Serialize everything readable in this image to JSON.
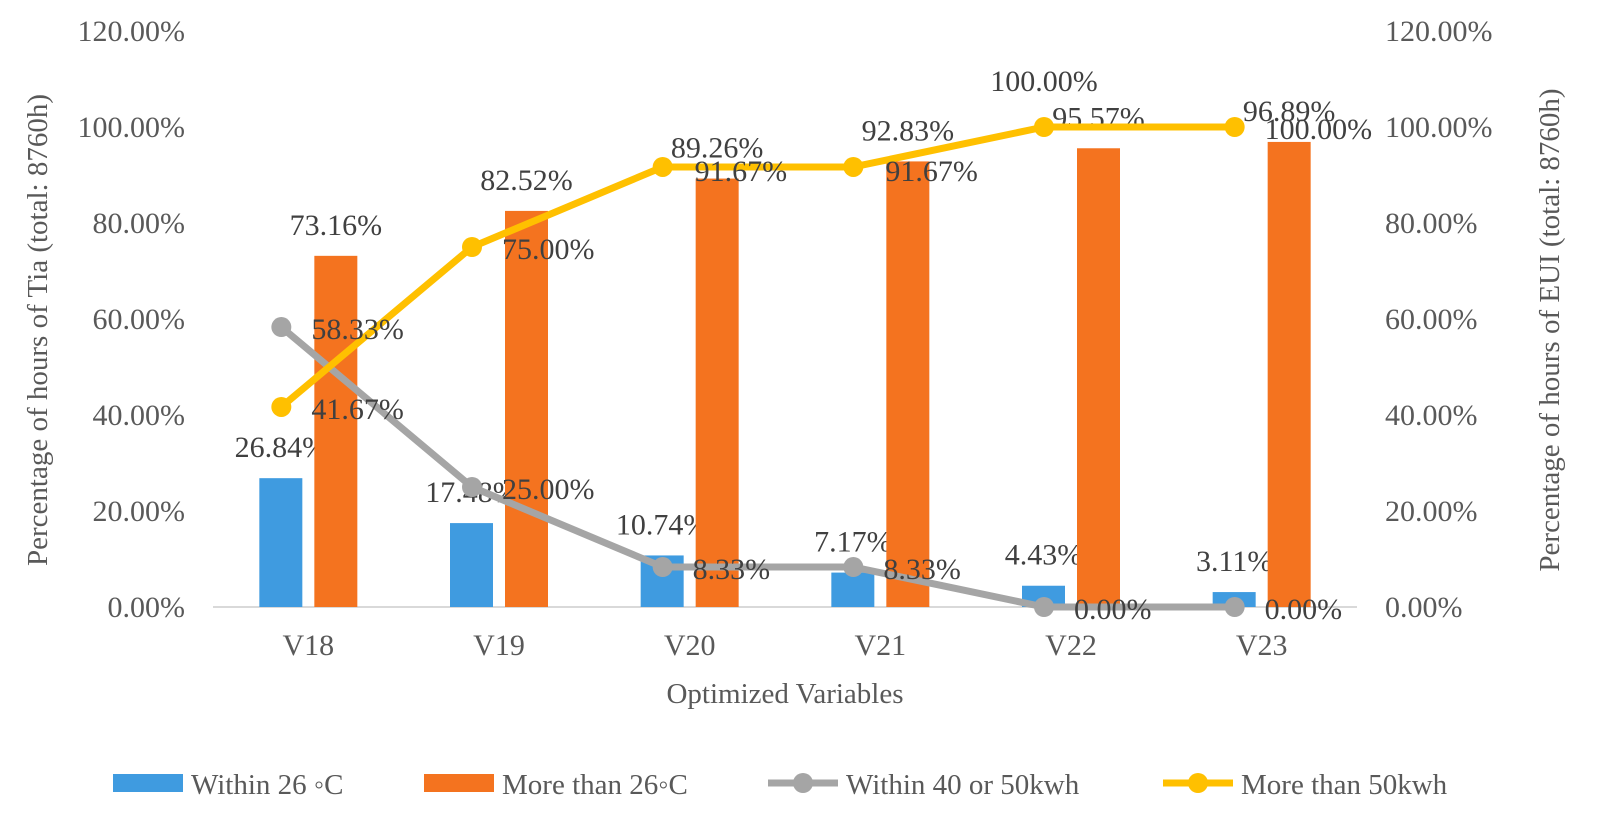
{
  "chart_data": {
    "type": "bar",
    "categories": [
      "V18",
      "V19",
      "V20",
      "V21",
      "V22",
      "V23"
    ],
    "xlabel": "Optimized Variables",
    "ylabel": "Percentage of hours of Tia (total: 8760h)",
    "y2label": "Percentage of hours of EUI (total: 8760h)",
    "ylim": [
      0,
      120
    ],
    "y2lim": [
      0,
      120
    ],
    "yticks": [
      "0.00%",
      "20.00%",
      "40.00%",
      "60.00%",
      "80.00%",
      "100.00%",
      "120.00%"
    ],
    "y2ticks": [
      "0.00%",
      "20.00%",
      "40.00%",
      "60.00%",
      "80.00%",
      "100.00%",
      "120.00%"
    ],
    "grid": "baseline only",
    "legend_position": "bottom",
    "series": [
      {
        "name": "Within 26 ◦C",
        "kind": "bar",
        "axis": "left",
        "color": "#3F9BE0",
        "values": [
          26.84,
          17.48,
          10.74,
          7.17,
          4.43,
          3.11
        ],
        "labels": [
          "26.84%",
          "17.48%",
          "10.74%",
          "7.17%",
          "4.43%",
          "3.11%"
        ]
      },
      {
        "name": "More than 26◦C",
        "kind": "bar",
        "axis": "left",
        "color": "#F4731F",
        "values": [
          73.16,
          82.52,
          89.26,
          92.83,
          95.57,
          96.89
        ],
        "labels": [
          "73.16%",
          "82.52%",
          "89.26%",
          "92.83%",
          "95.57%",
          "96.89%"
        ]
      },
      {
        "name": "Within 40 or 50kwh",
        "kind": "line",
        "axis": "right",
        "color": "#A5A5A5",
        "values": [
          58.33,
          25.0,
          8.33,
          8.33,
          0.0,
          0.0
        ],
        "labels": [
          "58.33%",
          "25.00%",
          "8.33%",
          "8.33%",
          "0.00%",
          "0.00%"
        ]
      },
      {
        "name": "More than 50kwh",
        "kind": "line",
        "axis": "right",
        "color": "#FFC000",
        "values": [
          41.67,
          75.0,
          91.67,
          91.67,
          100.0,
          100.0
        ],
        "labels": [
          "41.67%",
          "75.00%",
          "91.67%",
          "91.67%",
          "100.00%",
          "100.00%"
        ]
      }
    ]
  }
}
